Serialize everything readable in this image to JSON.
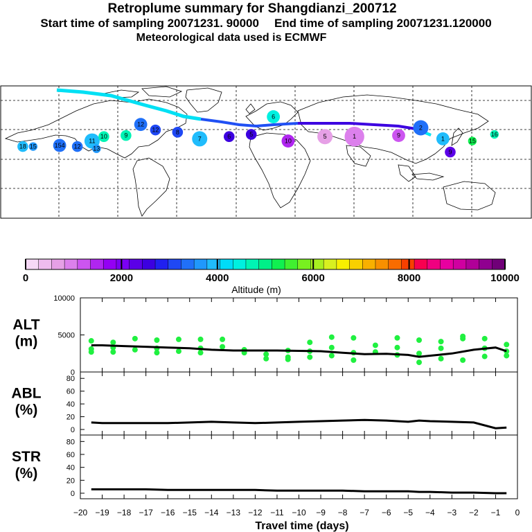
{
  "header": {
    "title": "Retroplume summary for Shangdianzi_200712",
    "start_label": "Start time of sampling 20071231. 90000",
    "end_label": "End time of sampling 20071231.120000",
    "met_label": "Meteorological data used is ECMWF"
  },
  "colorbar": {
    "label": "Altitude (m)",
    "ticks": [
      "0",
      "2000",
      "4000",
      "6000",
      "8000",
      "10000"
    ],
    "colors": [
      "#f6d8f6",
      "#eebcee",
      "#e6a0e6",
      "#dc80ec",
      "#cc55f0",
      "#b026f0",
      "#9400f4",
      "#7a00f4",
      "#5b00e8",
      "#3c00e0",
      "#2020f0",
      "#1f48f4",
      "#2070f8",
      "#2098fc",
      "#20bcfc",
      "#00dcf8",
      "#00f0e0",
      "#00f4b4",
      "#00f088",
      "#10f050",
      "#40f030",
      "#78f020",
      "#a8f020",
      "#d8f020",
      "#f8f000",
      "#f8d000",
      "#f8b000",
      "#f89000",
      "#f86c00",
      "#f84000",
      "#f80050",
      "#f00080",
      "#e800a0",
      "#d000a0",
      "#b00098",
      "#900090",
      "#700078"
    ]
  },
  "chart_data": [
    {
      "type": "scatter",
      "panel": "ALT",
      "ylabel": "ALT\n(m)",
      "ylim": [
        0,
        10000
      ],
      "yticks": [
        "0",
        "5000",
        "10000"
      ],
      "xlim": [
        -20,
        0
      ],
      "line_x": [
        -19.5,
        -19,
        -18,
        -17,
        -16,
        -15,
        -14,
        -13,
        -12,
        -11,
        -10,
        -9,
        -8,
        -7,
        -6,
        -5,
        -4.5,
        -4,
        -3,
        -2,
        -1,
        -0.5
      ],
      "line_y": [
        3600,
        3600,
        3500,
        3400,
        3300,
        3200,
        3000,
        2900,
        2900,
        2900,
        2850,
        2800,
        2600,
        2400,
        2450,
        2300,
        2050,
        2200,
        2500,
        3000,
        3300,
        2800
      ],
      "points": [
        {
          "x": -19.5,
          "y": 4200
        },
        {
          "x": -19.5,
          "y": 3100
        },
        {
          "x": -19.5,
          "y": 2700
        },
        {
          "x": -18.5,
          "y": 3300
        },
        {
          "x": -18.5,
          "y": 4000
        },
        {
          "x": -18.5,
          "y": 2700
        },
        {
          "x": -17.5,
          "y": 4500
        },
        {
          "x": -17.5,
          "y": 3000
        },
        {
          "x": -16.5,
          "y": 4300
        },
        {
          "x": -16.5,
          "y": 3200
        },
        {
          "x": -16.5,
          "y": 2600
        },
        {
          "x": -15.5,
          "y": 4400
        },
        {
          "x": -15.5,
          "y": 2800
        },
        {
          "x": -14.5,
          "y": 4400
        },
        {
          "x": -14.5,
          "y": 3200
        },
        {
          "x": -14.5,
          "y": 2600
        },
        {
          "x": -13.5,
          "y": 3400
        },
        {
          "x": -13.5,
          "y": 4400
        },
        {
          "x": -12.5,
          "y": 3000
        },
        {
          "x": -12.5,
          "y": 2600
        },
        {
          "x": -11.5,
          "y": 2400
        },
        {
          "x": -11.5,
          "y": 1800
        },
        {
          "x": -10.5,
          "y": 2900
        },
        {
          "x": -10.5,
          "y": 2000
        },
        {
          "x": -10.5,
          "y": 1700
        },
        {
          "x": -9.5,
          "y": 4000
        },
        {
          "x": -9.5,
          "y": 2800
        },
        {
          "x": -9.5,
          "y": 2000
        },
        {
          "x": -8.5,
          "y": 4700
        },
        {
          "x": -8.5,
          "y": 3300
        },
        {
          "x": -8.5,
          "y": 2200
        },
        {
          "x": -7.5,
          "y": 4600
        },
        {
          "x": -7.5,
          "y": 2600
        },
        {
          "x": -7.5,
          "y": 1600
        },
        {
          "x": -6.5,
          "y": 3600
        },
        {
          "x": -6.5,
          "y": 2700
        },
        {
          "x": -5.5,
          "y": 4600
        },
        {
          "x": -5.5,
          "y": 3300
        },
        {
          "x": -5.5,
          "y": 2300
        },
        {
          "x": -4.5,
          "y": 4300
        },
        {
          "x": -4.5,
          "y": 2500
        },
        {
          "x": -4.5,
          "y": 1300
        },
        {
          "x": -3.5,
          "y": 4100
        },
        {
          "x": -3.5,
          "y": 3200
        },
        {
          "x": -3.5,
          "y": 1800
        },
        {
          "x": -2.5,
          "y": 4800
        },
        {
          "x": -2.5,
          "y": 4500
        },
        {
          "x": -2.5,
          "y": 1600
        },
        {
          "x": -1.5,
          "y": 4500
        },
        {
          "x": -1.5,
          "y": 3200
        },
        {
          "x": -1.5,
          "y": 2100
        },
        {
          "x": -0.5,
          "y": 3700
        },
        {
          "x": -0.5,
          "y": 2800
        },
        {
          "x": -0.5,
          "y": 2200
        }
      ]
    },
    {
      "type": "line",
      "panel": "ABL",
      "ylabel": "ABL\n(%)",
      "ylim": [
        0,
        90
      ],
      "yticks": [
        "0",
        "20",
        "40",
        "60",
        "80"
      ],
      "x": [
        -19.5,
        -19,
        -18,
        -17,
        -16,
        -15,
        -14,
        -13,
        -12,
        -11,
        -10,
        -9,
        -8,
        -7,
        -6,
        -5,
        -4.5,
        -4,
        -3,
        -2,
        -1,
        -0.5
      ],
      "y": [
        11,
        10,
        10,
        10,
        10,
        11,
        12,
        11,
        10,
        11,
        12,
        13,
        14,
        15,
        14,
        12,
        14,
        13,
        12,
        11,
        2,
        3
      ]
    },
    {
      "type": "line",
      "panel": "STR",
      "ylabel": "STR\n(%)",
      "ylim": [
        0,
        90
      ],
      "yticks": [
        "0",
        "20",
        "40",
        "60",
        "80"
      ],
      "x": [
        -19.5,
        -19,
        -18,
        -17,
        -16,
        -15,
        -14,
        -13,
        -12,
        -11,
        -10,
        -9,
        -8,
        -7,
        -6,
        -5,
        -4.5,
        -4,
        -3,
        -2,
        -1,
        -0.5
      ],
      "y": [
        6,
        6,
        6,
        6,
        5,
        5,
        5,
        5,
        5,
        4,
        4,
        4,
        4,
        3,
        3,
        3,
        2,
        2,
        1,
        1,
        0,
        0
      ]
    }
  ],
  "xaxis": {
    "label": "Travel time (days)",
    "ticks": [
      "−20",
      "−19",
      "−18",
      "−17",
      "−16",
      "−15",
      "−14",
      "−13",
      "−12",
      "−11",
      "−10",
      "−9",
      "−8",
      "−7",
      "−6",
      "−5",
      "−4",
      "−3",
      "−2",
      "−1",
      "0"
    ]
  },
  "map": {
    "trajectory_colors": [
      "#00f0f0",
      "#1f48f4",
      "#3c00e0"
    ],
    "plume_points": [
      {
        "lon": -165,
        "lat": 35,
        "alt": 3800,
        "label": "18",
        "size": 3
      },
      {
        "lon": -158,
        "lat": 35,
        "alt": 3600,
        "label": "15",
        "size": 2
      },
      {
        "lon": -140,
        "lat": 36,
        "alt": 3500,
        "label": "154",
        "size": 4
      },
      {
        "lon": -128,
        "lat": 35,
        "alt": 3400,
        "label": "12",
        "size": 3
      },
      {
        "lon": -118,
        "lat": 40,
        "alt": 3900,
        "label": "11",
        "size": 5
      },
      {
        "lon": -115,
        "lat": 33,
        "alt": 3700,
        "label": "13",
        "size": 2
      },
      {
        "lon": -110,
        "lat": 44,
        "alt": 4600,
        "label": "10",
        "size": 3
      },
      {
        "lon": -95,
        "lat": 45,
        "alt": 4700,
        "label": "9",
        "size": 3
      },
      {
        "lon": -85,
        "lat": 55,
        "alt": 3300,
        "label": "12",
        "size": 4
      },
      {
        "lon": -75,
        "lat": 50,
        "alt": 3200,
        "label": "12",
        "size": 3
      },
      {
        "lon": -60,
        "lat": 48,
        "alt": 3000,
        "label": "8",
        "size": 3
      },
      {
        "lon": -45,
        "lat": 42,
        "alt": 3900,
        "label": "7",
        "size": 5
      },
      {
        "lon": -25,
        "lat": 44,
        "alt": 2700,
        "label": "6",
        "size": 3
      },
      {
        "lon": -10,
        "lat": 46,
        "alt": 2600,
        "label": "5",
        "size": 3
      },
      {
        "lon": 5,
        "lat": 62,
        "alt": 4500,
        "label": "6",
        "size": 4
      },
      {
        "lon": 15,
        "lat": 40,
        "alt": 1400,
        "label": "10",
        "size": 4
      },
      {
        "lon": 40,
        "lat": 44,
        "alt": 800,
        "label": "5",
        "size": 5
      },
      {
        "lon": 60,
        "lat": 44,
        "alt": 900,
        "label": "1",
        "size": 7
      },
      {
        "lon": 90,
        "lat": 45,
        "alt": 1200,
        "label": "9",
        "size": 4
      },
      {
        "lon": 105,
        "lat": 52,
        "alt": 3500,
        "label": "2",
        "size": 5
      },
      {
        "lon": 120,
        "lat": 42,
        "alt": 3800,
        "label": "1",
        "size": 4
      },
      {
        "lon": 125,
        "lat": 30,
        "alt": 2400,
        "label": "9",
        "size": 3
      },
      {
        "lon": 140,
        "lat": 40,
        "alt": 5200,
        "label": "15",
        "size": 2
      },
      {
        "lon": 155,
        "lat": 46,
        "alt": 4800,
        "label": "16",
        "size": 2
      }
    ]
  }
}
